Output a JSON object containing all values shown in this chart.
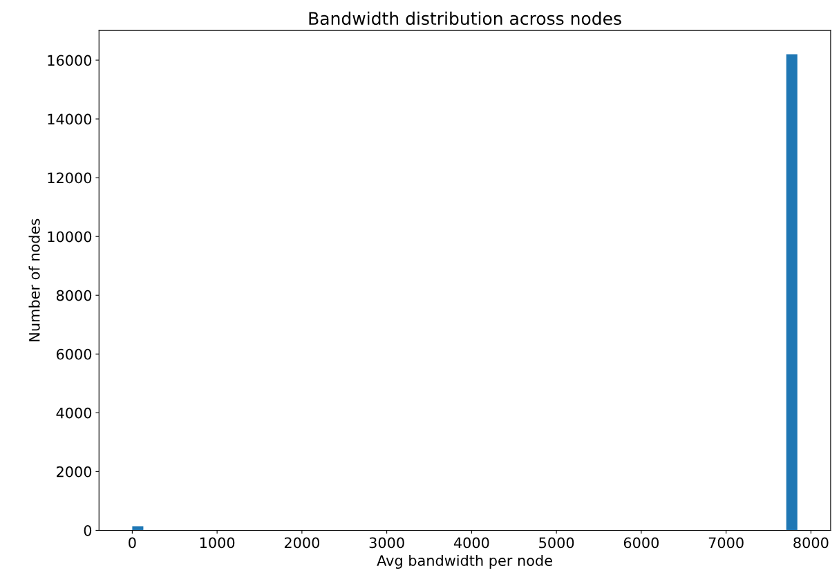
{
  "chart_data": {
    "type": "histogram",
    "title": "Bandwidth distribution across nodes",
    "xlabel": "Avg bandwidth per node",
    "ylabel": "Number of nodes",
    "color": "#1f77b4",
    "bins": [
      0,
      130.67,
      261.33,
      392,
      522.67,
      653.33,
      784,
      914.67,
      1045.33,
      1176,
      1306.67,
      1437.33,
      1568,
      1698.67,
      1829.33,
      1960,
      2090.67,
      2221.33,
      2352,
      2482.67,
      2613.33,
      2744,
      2874.67,
      3005.33,
      3136,
      3266.67,
      3397.33,
      3528,
      3658.67,
      3789.33,
      3920,
      4050.67,
      4181.33,
      4312,
      4442.67,
      4573.33,
      4704,
      4834.67,
      4965.33,
      5096,
      5226.67,
      5357.33,
      5488,
      5618.67,
      5749.33,
      5880,
      6010.67,
      6141.33,
      6272,
      6402.67,
      6533.33,
      6664,
      6794.67,
      6925.33,
      7056,
      7186.67,
      7317.33,
      7448,
      7578.67,
      7709.33,
      7840
    ],
    "values": [
      140,
      0,
      0,
      0,
      0,
      0,
      0,
      0,
      0,
      0,
      0,
      0,
      0,
      0,
      0,
      0,
      0,
      0,
      0,
      0,
      0,
      0,
      0,
      0,
      0,
      0,
      0,
      0,
      0,
      0,
      0,
      0,
      0,
      0,
      0,
      0,
      0,
      0,
      0,
      0,
      0,
      0,
      0,
      0,
      0,
      0,
      0,
      0,
      0,
      0,
      0,
      0,
      0,
      0,
      0,
      0,
      0,
      0,
      0,
      16200
    ],
    "xlim": [
      -392,
      8232
    ],
    "ylim": [
      0,
      17010
    ],
    "xticks": [
      0,
      1000,
      2000,
      3000,
      4000,
      5000,
      6000,
      7000,
      8000
    ],
    "yticks": [
      0,
      2000,
      4000,
      6000,
      8000,
      10000,
      12000,
      14000,
      16000
    ]
  }
}
